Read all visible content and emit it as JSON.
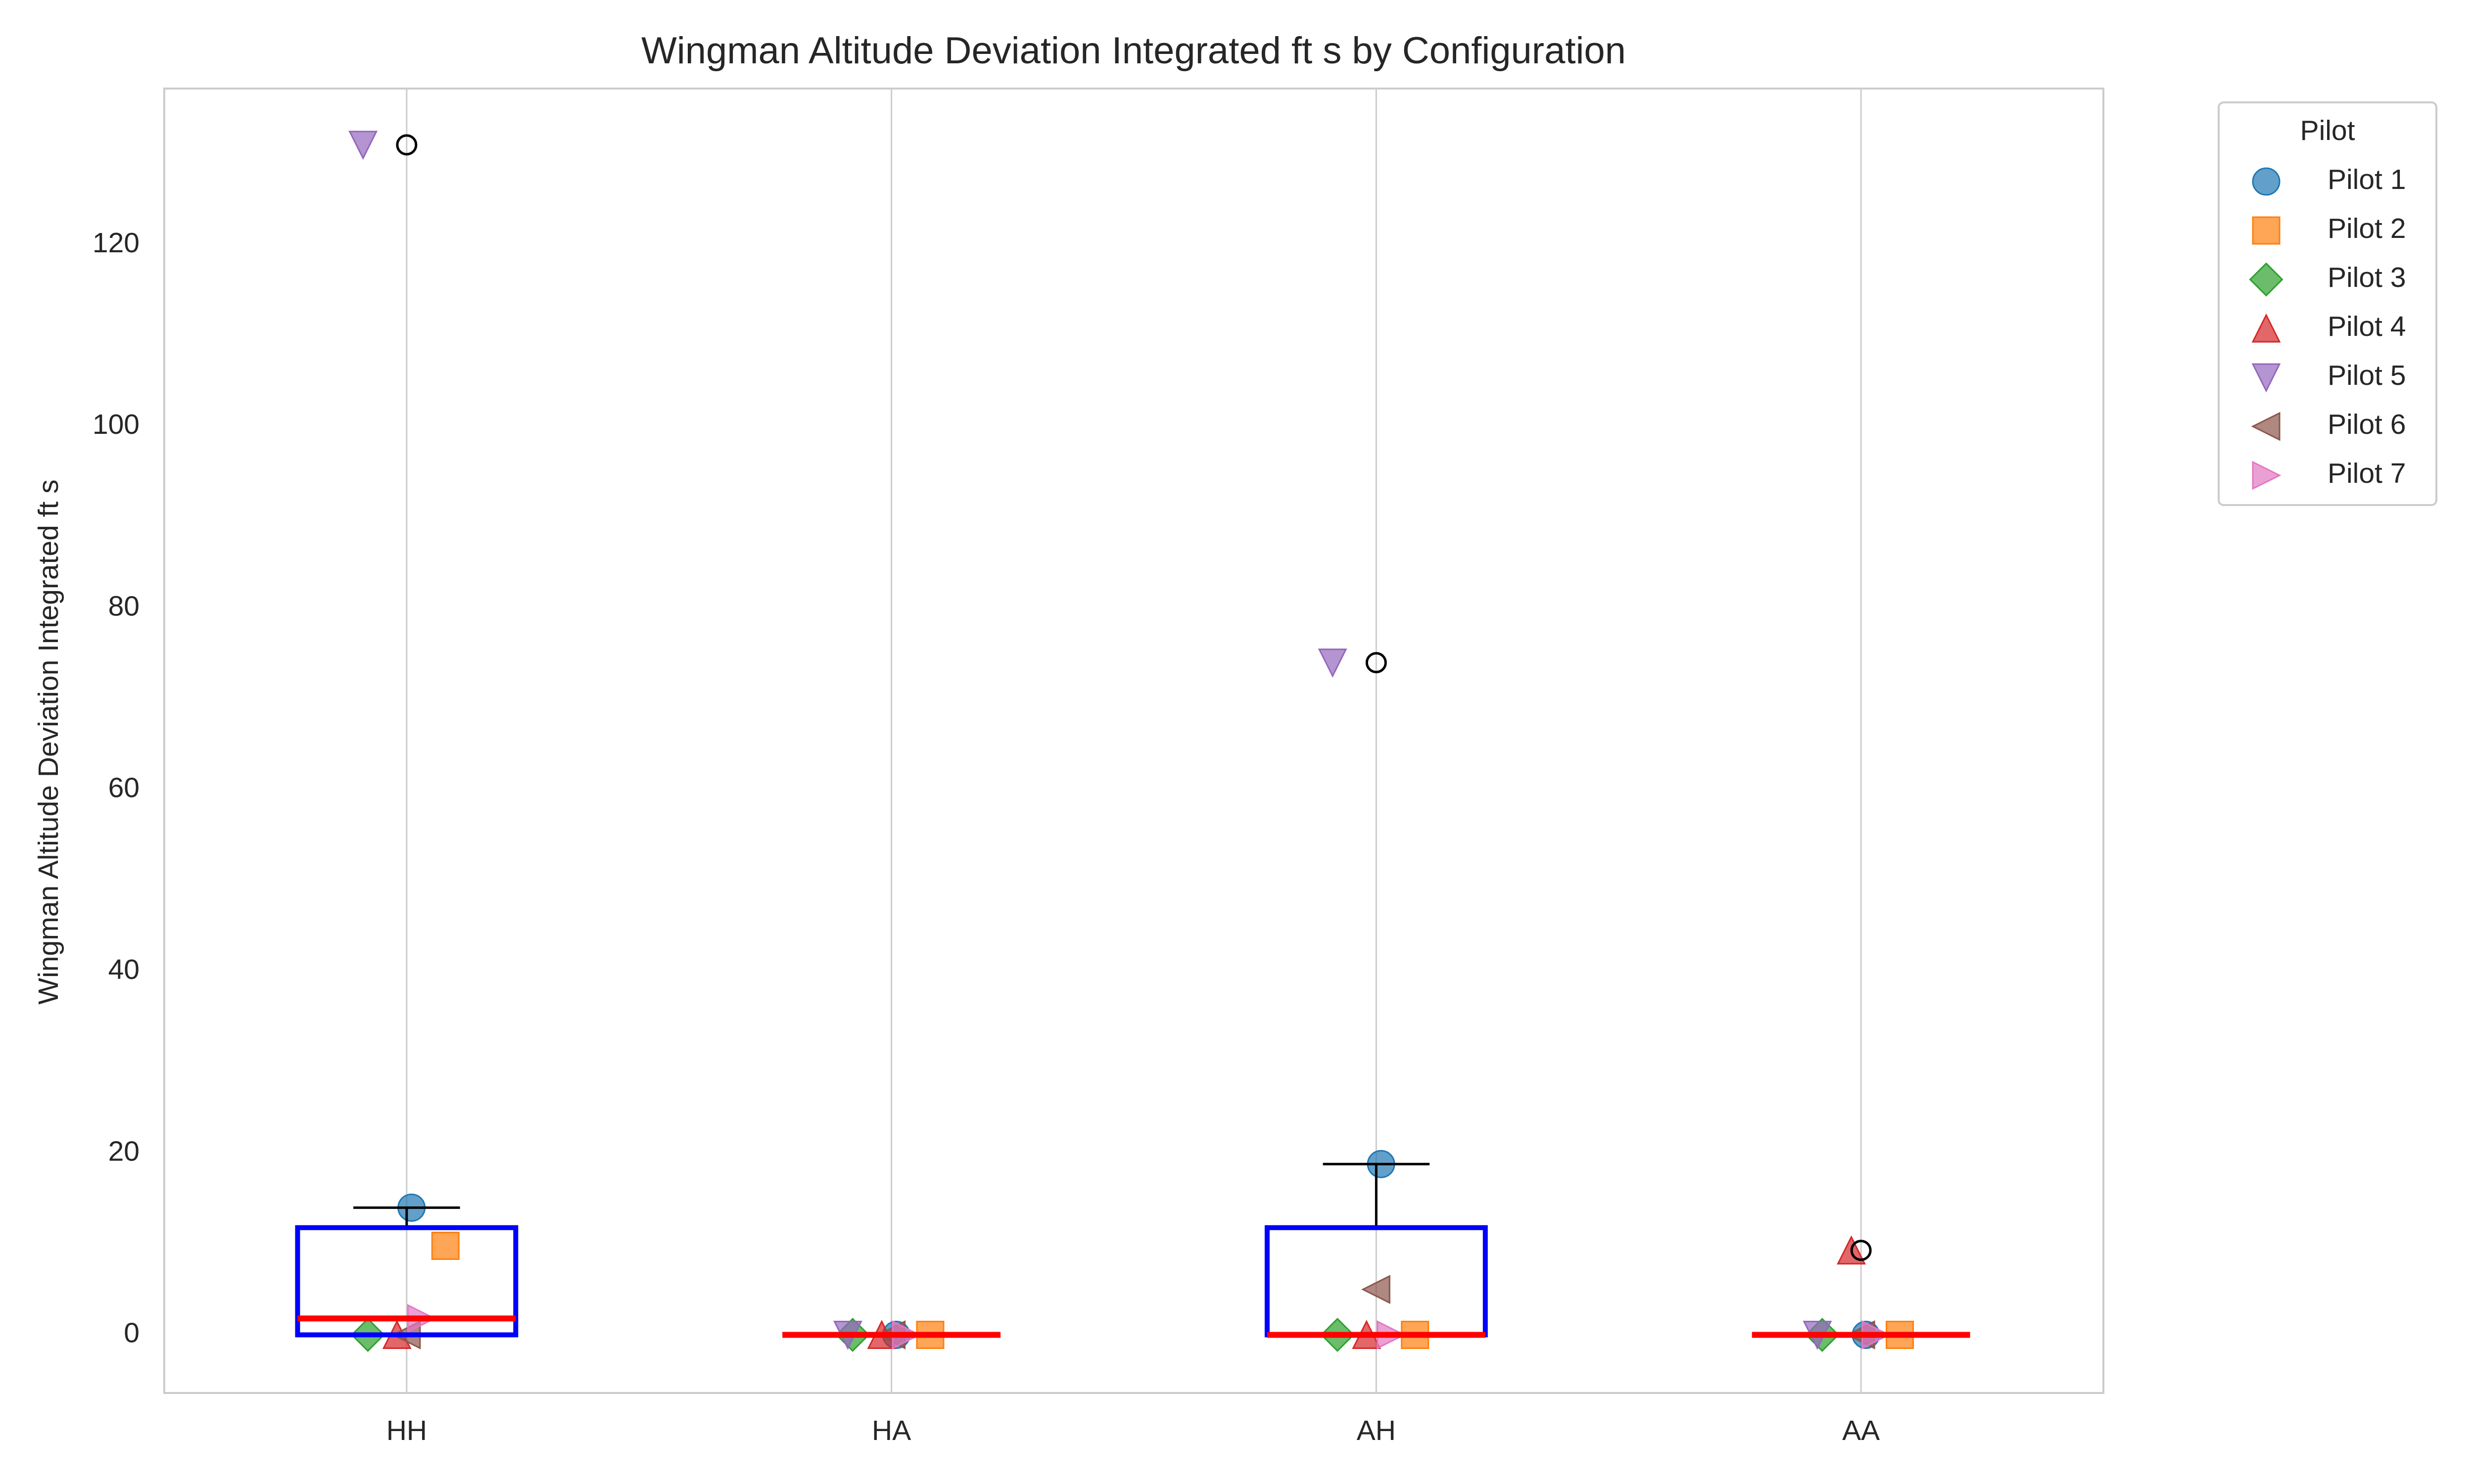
{
  "chart_data": {
    "type": "box",
    "title": "Wingman Altitude Deviation Integrated ft s by Configuration",
    "ylabel": "Wingman Altitude Deviation Integrated ft s",
    "categories": [
      "HH",
      "HA",
      "AH",
      "AA"
    ],
    "ylim": [
      -6.4,
      137.2
    ],
    "yticks": [
      0,
      20,
      40,
      60,
      80,
      100,
      120
    ],
    "grid": true,
    "grid_axis": "x",
    "box_color": "#0000ff",
    "median_color": "#ff0000",
    "whisker_color": "#000000",
    "boxes": [
      {
        "q1": 0,
        "median": 1.8,
        "q3": 11.8,
        "whislo": 0,
        "whishi": 14,
        "fliers": [
          131
        ]
      },
      {
        "q1": 0,
        "median": 0,
        "q3": 0,
        "whislo": 0,
        "whishi": 0,
        "fliers": []
      },
      {
        "q1": 0,
        "median": 0,
        "q3": 11.8,
        "whislo": 0,
        "whishi": 18.8,
        "fliers": [
          74
        ]
      },
      {
        "q1": 0,
        "median": 0,
        "q3": 0,
        "whislo": 0,
        "whishi": 0,
        "fliers": [
          9.3
        ]
      }
    ],
    "legend_title": "Pilot",
    "legend_position": "outside right",
    "series": [
      {
        "name": "Pilot 1",
        "color": "#1f77b4",
        "marker": "circle",
        "values": [
          14,
          0,
          18.8,
          0
        ]
      },
      {
        "name": "Pilot 2",
        "color": "#ff7f0e",
        "marker": "square",
        "values": [
          9.8,
          0,
          0,
          0
        ]
      },
      {
        "name": "Pilot 3",
        "color": "#2ca02c",
        "marker": "diamond",
        "values": [
          0,
          0,
          0,
          0
        ]
      },
      {
        "name": "Pilot 4",
        "color": "#d62728",
        "marker": "triangle-up",
        "values": [
          0,
          0,
          0,
          9.3
        ]
      },
      {
        "name": "Pilot 5",
        "color": "#9467bd",
        "marker": "triangle-down",
        "values": [
          131,
          0,
          74,
          0
        ]
      },
      {
        "name": "Pilot 6",
        "color": "#8c564b",
        "marker": "triangle-left",
        "values": [
          0,
          0,
          5,
          0
        ]
      },
      {
        "name": "Pilot 7",
        "color": "#e377c2",
        "marker": "triangle-right",
        "values": [
          1.8,
          0,
          0,
          0
        ]
      }
    ]
  }
}
